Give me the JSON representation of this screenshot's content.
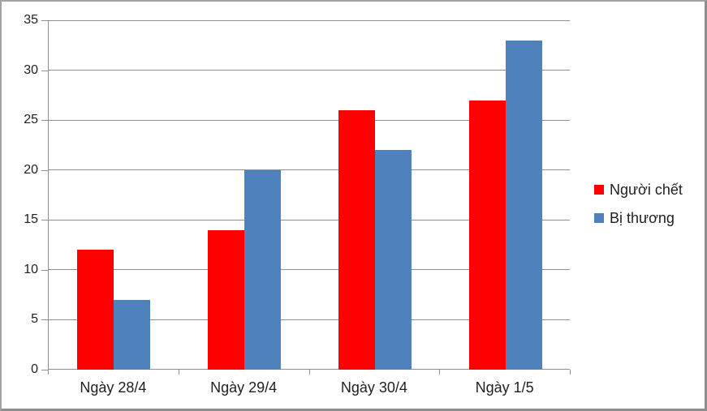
{
  "chart_data": {
    "type": "bar",
    "title": "",
    "categories": [
      "Ngày 28/4",
      "Ngày 29/4",
      "Ngày 30/4",
      "Ngày 1/5"
    ],
    "series": [
      {
        "name": "Người chết",
        "color": "#fe0000",
        "values": [
          12,
          14,
          26,
          27
        ]
      },
      {
        "name": "Bị thương",
        "color": "#4f81bd",
        "values": [
          7,
          20,
          22,
          33
        ]
      }
    ],
    "ylim": [
      0,
      35
    ],
    "y_ticks": [
      0,
      5,
      10,
      15,
      20,
      25,
      30,
      35
    ],
    "xlabel": "",
    "ylabel": "",
    "grid": true,
    "legend_position": "right"
  },
  "style": {
    "grid_color": "#8f8f8f",
    "text_color": "#1f1f1f",
    "background": "#ffffff",
    "border_color": "#a3a3a3"
  }
}
